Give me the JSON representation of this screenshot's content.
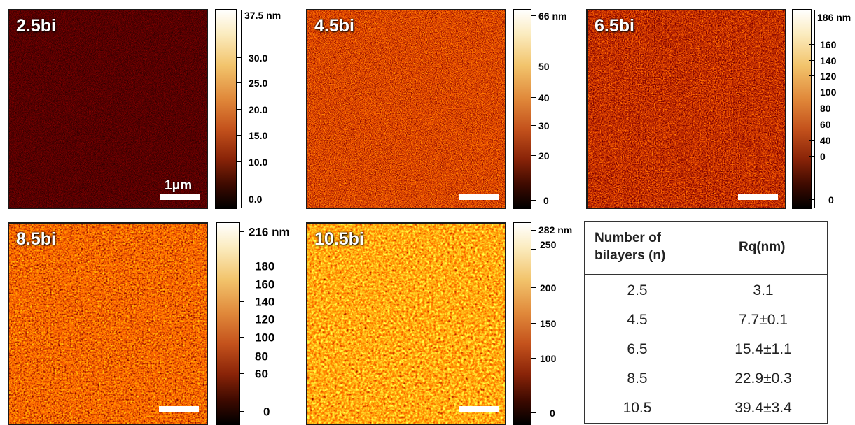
{
  "panels": [
    {
      "label": "2.5bi",
      "scale_label": "1μm",
      "level": 0.12,
      "colorbar": {
        "top": "37.5 nm",
        "ticks": [
          "30.0",
          "25.0",
          "20.0",
          "15.0",
          "10.0",
          "0.0"
        ]
      }
    },
    {
      "label": "4.5bi",
      "scale_label": "",
      "level": 0.38,
      "colorbar": {
        "top": "66 nm",
        "ticks": [
          "50",
          "40",
          "30",
          "20",
          "0"
        ]
      }
    },
    {
      "label": "6.5bi",
      "scale_label": "",
      "level": 0.33,
      "colorbar": {
        "top": "186 nm",
        "ticks": [
          "160",
          "140",
          "120",
          "100",
          "80",
          "60",
          "40",
          "0"
        ]
      }
    },
    {
      "label": "8.5bi",
      "scale_label": "",
      "level": 0.45,
      "colorbar": {
        "top": "216 nm",
        "ticks": [
          "180",
          "160",
          "140",
          "120",
          "100",
          "80",
          "60",
          "0"
        ]
      }
    },
    {
      "label": "10.5bi",
      "scale_label": "",
      "level": 0.6,
      "colorbar": {
        "top": "282 nm",
        "ticks": [
          "250",
          "200",
          "150",
          "100",
          "0"
        ]
      }
    }
  ],
  "table": {
    "header_n": "Number of bilayers (n)",
    "header_rq": "Rq(nm)",
    "rows": [
      {
        "n": "2.5",
        "rq": "3.1"
      },
      {
        "n": "4.5",
        "rq": "7.7±0.1"
      },
      {
        "n": "6.5",
        "rq": "15.4±1.1"
      },
      {
        "n": "8.5",
        "rq": "22.9±0.3"
      },
      {
        "n": "10.5",
        "rq": "39.4±3.4"
      }
    ]
  }
}
